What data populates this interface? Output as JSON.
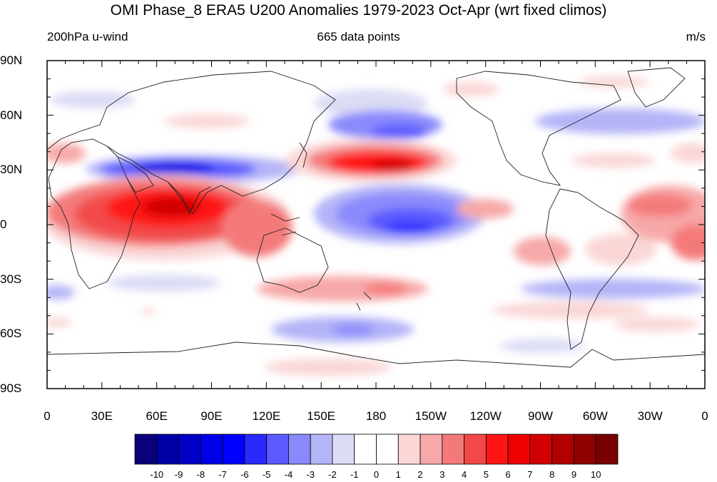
{
  "title": "OMI Phase_8 ERA5 U200 Anomalies 1979-2023 Oct-Apr (wrt fixed climos)",
  "left_label": "200hPa u-wind",
  "center_label": "665 data points",
  "right_label": "m/s",
  "lat_ticks": [
    "90N",
    "60N",
    "30N",
    "0",
    "30S",
    "60S",
    "90S"
  ],
  "lon_ticks": [
    "0",
    "30E",
    "60E",
    "90E",
    "120E",
    "150E",
    "180",
    "150W",
    "120W",
    "90W",
    "60W",
    "30W",
    "0"
  ],
  "colorbar": {
    "labels": [
      "-10",
      "-9",
      "-8",
      "-7",
      "-6",
      "-5",
      "-4",
      "-3",
      "-2",
      "-1",
      "0",
      "1",
      "2",
      "3",
      "4",
      "5",
      "6",
      "7",
      "8",
      "9",
      "10"
    ],
    "colors": [
      "#0a007a",
      "#0000a8",
      "#0000c8",
      "#0000e8",
      "#0000ff",
      "#2a2aff",
      "#5a5aff",
      "#8a8afc",
      "#b4b4f8",
      "#dcdcf6",
      "#ffffff",
      "#ffffff",
      "#fad6d6",
      "#f7a8a8",
      "#f47a7a",
      "#f24848",
      "#ff1414",
      "#ee0000",
      "#d20000",
      "#b00000",
      "#900000",
      "#780000"
    ]
  },
  "chart_data": {
    "type": "heatmap",
    "projection": "cylindrical-equidistant",
    "lon_range": [
      0,
      360
    ],
    "lat_range": [
      -90,
      90
    ],
    "field": "200hPa u-wind anomaly",
    "units": "m/s",
    "levels": [
      -10,
      -9,
      -8,
      -7,
      -6,
      -5,
      -4,
      -3,
      -2,
      -1,
      0,
      1,
      2,
      3,
      4,
      5,
      6,
      7,
      8,
      9,
      10
    ],
    "anomalies": [
      {
        "lon": 70,
        "lat": 8,
        "value": 7.5
      },
      {
        "lon": 40,
        "lat": 15,
        "value": 6
      },
      {
        "lon": 95,
        "lat": -2,
        "value": 5
      },
      {
        "lon": 75,
        "lat": 30,
        "value": -6
      },
      {
        "lon": 185,
        "lat": 32,
        "value": 7
      },
      {
        "lon": 195,
        "lat": 45,
        "value": -4
      },
      {
        "lon": 200,
        "lat": 3,
        "value": -5
      },
      {
        "lon": 210,
        "lat": -2,
        "value": -5.5
      },
      {
        "lon": 345,
        "lat": 10,
        "value": 4
      },
      {
        "lon": 355,
        "lat": -10,
        "value": 5
      },
      {
        "lon": 280,
        "lat": -12,
        "value": 3
      },
      {
        "lon": 240,
        "lat": 8,
        "value": 2
      },
      {
        "lon": 340,
        "lat": 50,
        "value": -2.5
      },
      {
        "lon": 330,
        "lat": -35,
        "value": -3
      },
      {
        "lon": 165,
        "lat": -60,
        "value": -3
      },
      {
        "lon": 180,
        "lat": -35,
        "value": 3
      },
      {
        "lon": 160,
        "lat": -75,
        "value": 1.5
      }
    ]
  }
}
